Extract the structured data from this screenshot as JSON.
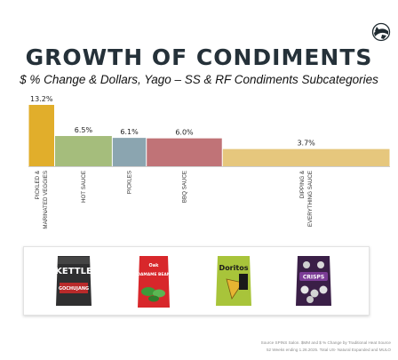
{
  "header": {
    "title": "GROWTH OF CONDIMENTS",
    "subtitle": "$ % Change & Dollars, Yago – SS & RF Condiments Subcategories"
  },
  "chart_data": {
    "type": "bar",
    "categories": [
      "PICKLED & MARINATED VEGGIES",
      "HOT SAUCE",
      "PICKLES",
      "BBQ SAUCE",
      "DIPPING & EVERYTHING SAUCE"
    ],
    "category_lines": [
      [
        "PICKLED &",
        "MARINATED VEGGIES"
      ],
      [
        "HOT SAUCE"
      ],
      [
        "PICKLES"
      ],
      [
        "BBQ SAUCE"
      ],
      [
        "DIPPING &",
        "EVERYTHING SAUCE"
      ]
    ],
    "values": [
      13.2,
      6.5,
      6.1,
      6.0,
      3.7
    ],
    "value_labels": [
      "13.2%",
      "6.5%",
      "6.1%",
      "6.0%",
      "3.7%"
    ],
    "relative_dollars": [
      1,
      2.2,
      1.3,
      2.9,
      6.4
    ],
    "colors": [
      "#e1ae2b",
      "#a5bd7c",
      "#8ba5b0",
      "#c07377",
      "#e6c77d"
    ],
    "ylim": [
      0,
      13.2
    ],
    "grid": false,
    "xlabel": "",
    "ylabel": ""
  },
  "products": [
    {
      "name": "kettle-chips",
      "text_top": "KETTLE",
      "text_bottom": "GOCHUJANG",
      "bag": "#2f2f30",
      "label": "#b92a2a"
    },
    {
      "name": "edamame-beans",
      "text_top": "Oak",
      "text_bottom": "EDAMAME BEANS",
      "bag": "#d8272b",
      "label": "#3e9a3a"
    },
    {
      "name": "doritos-chips",
      "text_top": "Doritos",
      "text_bottom": "",
      "bag": "#a8c43a",
      "label": "#1a1a1a"
    },
    {
      "name": "crisps-bag",
      "text_top": "",
      "text_bottom": "CRISPS",
      "bag": "#3a1f47",
      "label": "#7b3c96"
    }
  ],
  "source": {
    "line1": "Source SPINS Salon. $MM and $ % Change by Traditional Heat Source",
    "line2": "52 Weeks ending 1.26.2025. Total US- Natural Expanded and MULO"
  }
}
